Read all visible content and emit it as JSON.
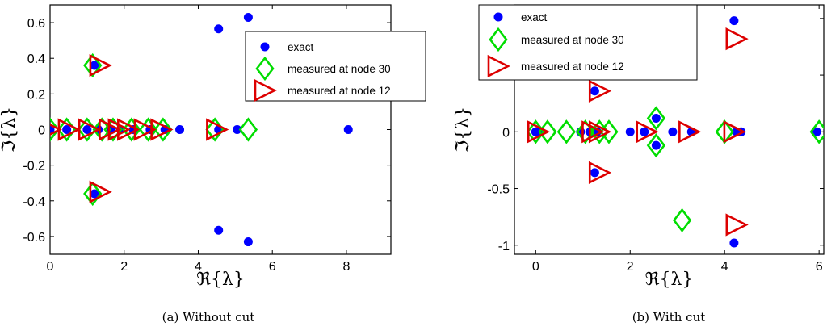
{
  "chart_data": [
    {
      "type": "scatter",
      "caption": "(a) Without cut",
      "xlabel": "ℜ{λ}",
      "ylabel": "ℑ{λ}",
      "xlim": [
        0,
        9.2
      ],
      "ylim": [
        -0.7,
        0.7
      ],
      "xticks": [
        0,
        2,
        4,
        6,
        8
      ],
      "yticks": [
        -0.6,
        -0.4,
        -0.2,
        0,
        0.2,
        0.4,
        0.6
      ],
      "legend_position": "top-right",
      "series": [
        {
          "name": "exact",
          "marker": "circle",
          "color": "#0000ff",
          "points": [
            [
              0,
              0
            ],
            [
              0.45,
              0
            ],
            [
              1.0,
              0
            ],
            [
              1.3,
              0
            ],
            [
              1.65,
              0
            ],
            [
              1.9,
              0
            ],
            [
              2.25,
              0
            ],
            [
              2.7,
              0
            ],
            [
              3.1,
              0
            ],
            [
              3.5,
              0
            ],
            [
              4.55,
              0
            ],
            [
              5.05,
              0
            ],
            [
              8.05,
              0
            ],
            [
              1.2,
              0.36
            ],
            [
              1.2,
              -0.36
            ],
            [
              4.55,
              0.565
            ],
            [
              4.55,
              -0.565
            ],
            [
              5.35,
              0.63
            ],
            [
              5.35,
              -0.63
            ]
          ]
        },
        {
          "name": "measured at node 30",
          "marker": "diamond",
          "color": "#00dd00",
          "points": [
            [
              0,
              0
            ],
            [
              0.45,
              0
            ],
            [
              1.0,
              0
            ],
            [
              1.4,
              0
            ],
            [
              1.7,
              0
            ],
            [
              2.2,
              0
            ],
            [
              2.65,
              0
            ],
            [
              3.05,
              0
            ],
            [
              4.45,
              0
            ],
            [
              5.35,
              0
            ],
            [
              1.15,
              0.36
            ],
            [
              1.15,
              -0.36
            ]
          ]
        },
        {
          "name": "measured at node 12",
          "marker": "triangle-right",
          "color": "#dd0000",
          "points": [
            [
              0,
              0
            ],
            [
              0.5,
              0
            ],
            [
              1.05,
              0
            ],
            [
              1.6,
              0
            ],
            [
              1.85,
              0
            ],
            [
              2.1,
              0
            ],
            [
              2.55,
              0
            ],
            [
              3.0,
              0
            ],
            [
              4.5,
              0
            ],
            [
              1.35,
              0.36
            ],
            [
              1.35,
              -0.35
            ]
          ]
        }
      ]
    },
    {
      "type": "scatter",
      "caption": "(b) With cut",
      "xlabel": "ℜ{λ}",
      "ylabel": "ℑ{λ}",
      "xlim": [
        -0.45,
        6.1
      ],
      "ylim": [
        -1.08,
        1.12
      ],
      "xticks": [
        0,
        2,
        4,
        6
      ],
      "yticks": [
        -1,
        -0.5,
        0,
        0.5,
        1
      ],
      "legend_position": "top-left",
      "series": [
        {
          "name": "exact",
          "marker": "circle",
          "color": "#0000ff",
          "points": [
            [
              0,
              0
            ],
            [
              0.1,
              0
            ],
            [
              0.95,
              0
            ],
            [
              1.15,
              0
            ],
            [
              1.3,
              0
            ],
            [
              2.0,
              0
            ],
            [
              2.3,
              0
            ],
            [
              2.9,
              0
            ],
            [
              3.3,
              0
            ],
            [
              4.25,
              0
            ],
            [
              4.35,
              0
            ],
            [
              5.95,
              0
            ],
            [
              1.25,
              0.36
            ],
            [
              1.25,
              -0.36
            ],
            [
              2.55,
              0.12
            ],
            [
              2.55,
              -0.12
            ],
            [
              4.2,
              0.98
            ],
            [
              4.2,
              -0.98
            ]
          ]
        },
        {
          "name": "measured at node 30",
          "marker": "diamond",
          "color": "#00dd00",
          "points": [
            [
              0,
              0
            ],
            [
              0.25,
              0
            ],
            [
              0.65,
              0
            ],
            [
              1.05,
              0
            ],
            [
              1.35,
              0
            ],
            [
              1.55,
              0
            ],
            [
              2.55,
              0.12
            ],
            [
              2.55,
              -0.12
            ],
            [
              3.1,
              -0.78
            ],
            [
              4.0,
              0
            ],
            [
              6.0,
              0
            ]
          ]
        },
        {
          "name": "measured at node 12",
          "marker": "triangle-right",
          "color": "#dd0000",
          "points": [
            [
              0.05,
              0
            ],
            [
              1.2,
              0
            ],
            [
              1.35,
              0
            ],
            [
              2.35,
              0
            ],
            [
              3.25,
              0
            ],
            [
              4.2,
              0
            ],
            [
              1.35,
              0.36
            ],
            [
              1.35,
              -0.36
            ],
            [
              4.25,
              0.82
            ],
            [
              4.25,
              -0.82
            ]
          ]
        }
      ]
    }
  ]
}
